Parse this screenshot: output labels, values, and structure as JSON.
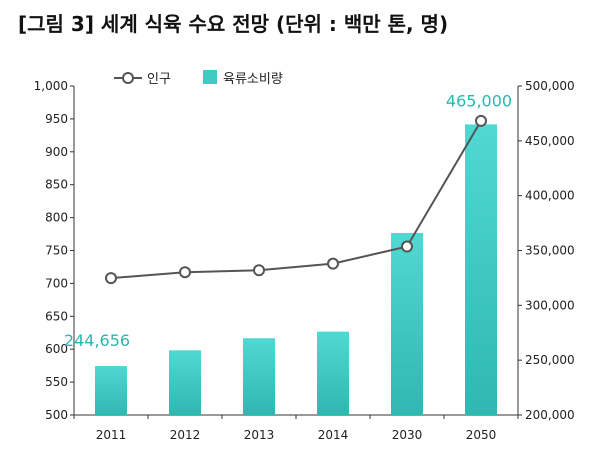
{
  "title": "[그림 3] 세계 식육 수요 전망 (단위 : 백만 톤, 명)",
  "colors": {
    "bar": "#3fcbc4",
    "bar_light": "#6fe0da",
    "line": "#555555",
    "label": "#2bb6b0",
    "axis": "#333333"
  },
  "chart_data": {
    "type": "bar",
    "categories": [
      "2011",
      "2012",
      "2013",
      "2014",
      "2030",
      "2050"
    ],
    "series": [
      {
        "name": "인구",
        "kind": "line",
        "axis": "left",
        "values": [
          708,
          717,
          720,
          730,
          756,
          947
        ]
      },
      {
        "name": "육류소비량",
        "kind": "bar",
        "axis": "right",
        "values": [
          244656,
          259000,
          270000,
          276000,
          366000,
          465000
        ]
      }
    ],
    "data_labels": [
      {
        "category": "2011",
        "text": "244,656"
      },
      {
        "category": "2050",
        "text": "465,000"
      }
    ],
    "left_axis": {
      "ylim": [
        500,
        1000
      ],
      "ticks": [
        "500",
        "550",
        "600",
        "650",
        "700",
        "750",
        "800",
        "850",
        "900",
        "950",
        "1,000"
      ]
    },
    "right_axis": {
      "ylim": [
        200000,
        500000
      ],
      "ticks": [
        "200,000",
        "250,000",
        "300,000",
        "350,000",
        "400,000",
        "450,000",
        "500,000"
      ]
    },
    "legend": {
      "placement": "top-left"
    },
    "grid": false
  }
}
